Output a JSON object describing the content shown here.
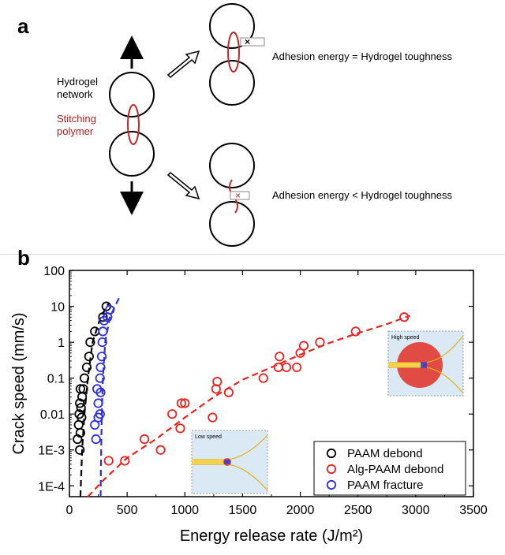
{
  "panel_a": {
    "label": "a",
    "hydrogel_label": [
      "Hydrogel",
      "network"
    ],
    "stitching_label": [
      "Stitching",
      "polymer"
    ],
    "outcome_top": "Adhesion energy = Hydrogel toughness",
    "outcome_bottom": "Adhesion energy < Hydrogel toughness",
    "colors": {
      "stitch": "#c0282a",
      "outline": "#000000"
    }
  },
  "panel_b": {
    "label": "b"
  },
  "chart_data": {
    "type": "scatter",
    "xlabel": "Energy release rate (J/m²)",
    "ylabel": "Crack speed (mm/s)",
    "xlim": [
      0,
      3500
    ],
    "ylim": [
      5e-05,
      100
    ],
    "yscale": "log",
    "x_ticks": [
      "0",
      "500",
      "1000",
      "1500",
      "2000",
      "2500",
      "3000",
      "3500"
    ],
    "y_ticks": [
      "1E-4",
      "1E-3",
      "0.01",
      "0.1",
      "1",
      "10",
      "100"
    ],
    "legend_position": "bottom-right",
    "series": [
      {
        "name": "PAAM debond",
        "color": "#000000",
        "points": [
          [
            90,
            0.001
          ],
          [
            70,
            0.002
          ],
          [
            95,
            0.003
          ],
          [
            80,
            0.005
          ],
          [
            105,
            0.008
          ],
          [
            85,
            0.01
          ],
          [
            100,
            0.015
          ],
          [
            90,
            0.02
          ],
          [
            110,
            0.03
          ],
          [
            120,
            0.05
          ],
          [
            95,
            0.05
          ],
          [
            130,
            0.1
          ],
          [
            150,
            0.2
          ],
          [
            170,
            0.4
          ],
          [
            180,
            1
          ],
          [
            220,
            2
          ],
          [
            290,
            5
          ],
          [
            320,
            10
          ]
        ],
        "fit": [
          [
            95,
            5e-05
          ],
          [
            110,
            0.001
          ],
          [
            130,
            0.01
          ],
          [
            160,
            0.1
          ],
          [
            200,
            1
          ],
          [
            270,
            5
          ],
          [
            340,
            12
          ]
        ]
      },
      {
        "name": "Alg-PAAM debond",
        "color": "#e8221e",
        "points": [
          [
            340,
            0.0005
          ],
          [
            480,
            0.0005
          ],
          [
            650,
            0.002
          ],
          [
            790,
            0.001
          ],
          [
            890,
            0.01
          ],
          [
            970,
            0.02
          ],
          [
            1000,
            0.02
          ],
          [
            960,
            0.004
          ],
          [
            1240,
            0.008
          ],
          [
            1270,
            0.05
          ],
          [
            1280,
            0.08
          ],
          [
            1380,
            0.04
          ],
          [
            1680,
            0.1
          ],
          [
            1810,
            0.2
          ],
          [
            1820,
            0.4
          ],
          [
            1880,
            0.2
          ],
          [
            1970,
            0.2
          ],
          [
            2000,
            0.5
          ],
          [
            2030,
            0.8
          ],
          [
            2170,
            1
          ],
          [
            2480,
            2
          ],
          [
            2900,
            5
          ]
        ],
        "fit": [
          [
            160,
            5e-05
          ],
          [
            300,
            0.00015
          ],
          [
            500,
            0.0006
          ],
          [
            750,
            0.002
          ],
          [
            1000,
            0.008
          ],
          [
            1250,
            0.03
          ],
          [
            1500,
            0.09
          ],
          [
            1750,
            0.2
          ],
          [
            2000,
            0.45
          ],
          [
            2250,
            0.95
          ],
          [
            2500,
            1.8
          ],
          [
            2750,
            3.2
          ],
          [
            2950,
            5.5
          ]
        ]
      },
      {
        "name": "PAAM fracture",
        "color": "#2c2ee0",
        "points": [
          [
            230,
            0.002
          ],
          [
            220,
            0.005
          ],
          [
            250,
            0.008
          ],
          [
            265,
            0.01
          ],
          [
            250,
            0.02
          ],
          [
            270,
            0.04
          ],
          [
            240,
            0.05
          ],
          [
            265,
            0.1
          ],
          [
            270,
            0.2
          ],
          [
            280,
            0.4
          ],
          [
            285,
            1
          ],
          [
            290,
            2
          ],
          [
            300,
            4
          ],
          [
            330,
            5
          ],
          [
            350,
            8
          ]
        ],
        "fit": [
          [
            270,
            5e-05
          ],
          [
            275,
            0.001
          ],
          [
            280,
            0.01
          ],
          [
            290,
            0.1
          ],
          [
            310,
            1
          ],
          [
            350,
            5
          ],
          [
            440,
            20
          ]
        ]
      }
    ],
    "insets": [
      {
        "label": "Low speed"
      },
      {
        "label": "High speed"
      }
    ]
  }
}
